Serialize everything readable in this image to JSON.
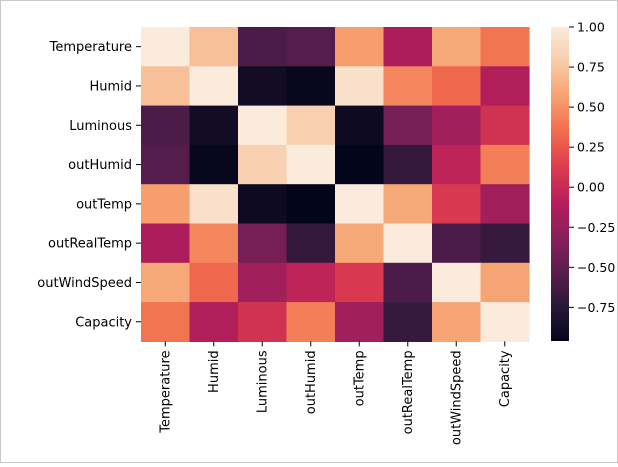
{
  "chart_data": {
    "type": "heatmap",
    "title": "",
    "xlabel": "",
    "ylabel": "",
    "row_labels": [
      "Temperature",
      "Humid",
      "Luminous",
      "outHumid",
      "outTemp",
      "outRealTemp",
      "outWindSpeed",
      "Capacity"
    ],
    "col_labels": [
      "Temperature",
      "Humid",
      "Luminous",
      "outHumid",
      "outTemp",
      "outRealTemp",
      "outWindSpeed",
      "Capacity"
    ],
    "values": [
      [
        1.0,
        0.72,
        -0.6,
        -0.55,
        0.55,
        -0.15,
        0.6,
        0.38
      ],
      [
        0.72,
        1.0,
        -0.88,
        -0.93,
        0.92,
        0.45,
        0.32,
        -0.12
      ],
      [
        -0.6,
        -0.88,
        1.0,
        0.82,
        -0.9,
        -0.4,
        -0.2,
        0.05
      ],
      [
        -0.55,
        -0.93,
        0.82,
        1.0,
        -0.97,
        -0.7,
        -0.05,
        0.42
      ],
      [
        0.55,
        0.92,
        -0.9,
        -0.97,
        1.0,
        0.6,
        0.1,
        -0.2
      ],
      [
        -0.15,
        0.45,
        -0.4,
        -0.7,
        0.6,
        1.0,
        -0.6,
        -0.68
      ],
      [
        0.6,
        0.32,
        -0.2,
        -0.05,
        0.1,
        -0.6,
        1.0,
        0.58
      ],
      [
        0.38,
        -0.12,
        0.05,
        0.42,
        -0.2,
        -0.68,
        0.58,
        1.0
      ]
    ],
    "colorbar": {
      "range": [
        -0.96,
        1.0
      ],
      "ticks": [
        1.0,
        0.75,
        0.5,
        0.25,
        0.0,
        -0.25,
        -0.5,
        -0.75
      ],
      "tick_labels": [
        "1.00",
        "0.75",
        "0.50",
        "0.25",
        "0.00",
        "−0.25",
        "−0.50",
        "−0.75"
      ],
      "colormap": "rocket",
      "colormap_stops": [
        "#03051a",
        "#2b1737",
        "#5a1e4f",
        "#8a1f5c",
        "#b91e5a",
        "#dd3d4e",
        "#f16d4c",
        "#f6a16f",
        "#f8cca9",
        "#faebdd"
      ]
    }
  }
}
